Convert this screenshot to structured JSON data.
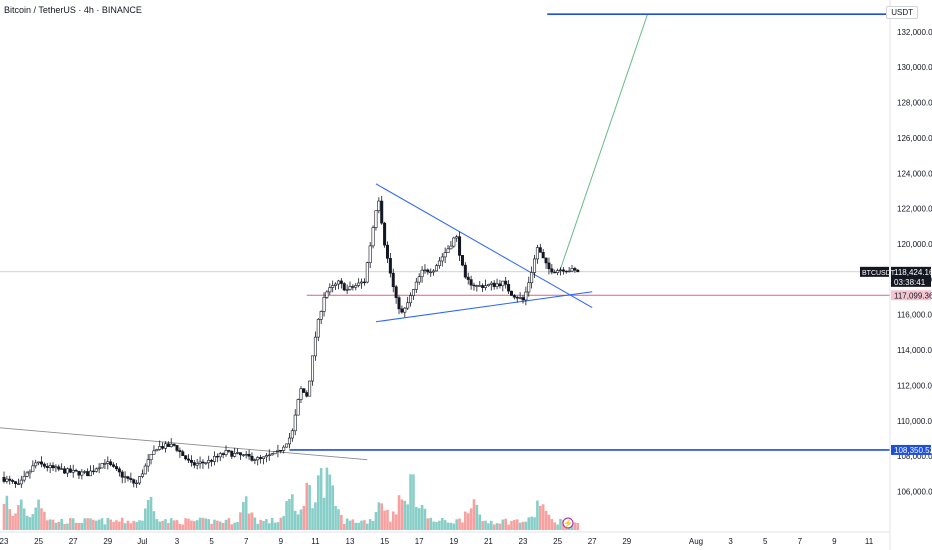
{
  "header": {
    "title": "Bitcoin / TetherUS · 4h · BINANCE",
    "currency": "USDT"
  },
  "colors": {
    "up": "#26a69a",
    "down": "#ef5350",
    "candle": "#131722",
    "trendline": "#2962ff",
    "projection": "#66bb8a",
    "support": "#e06080",
    "level": "#1e4fd8",
    "oldtrend": "#8a8a8a",
    "lastprice": "#131722"
  },
  "chart_data": {
    "type": "candlestick",
    "symbol": "BTCUSDT",
    "ylim": [
      104500,
      133800
    ],
    "y_ticks": [
      106000,
      108000,
      110000,
      112000,
      114000,
      116000,
      118000,
      120000,
      122000,
      124000,
      126000,
      128000,
      130000,
      132000
    ],
    "y_tick_labels": [
      "106,000.00",
      "108,000.00",
      "110,000.00",
      "112,000.00",
      "114,000.00",
      "116,000.00",
      "118,000.00",
      "120,000.00",
      "122,000.00",
      "124,000.00",
      "126,000.00",
      "128,000.00",
      "130,000.00",
      "132,000.00"
    ],
    "x_tick_labels": [
      "23",
      "25",
      "27",
      "29",
      "Jul",
      "3",
      "5",
      "7",
      "9",
      "11",
      "13",
      "15",
      "17",
      "19",
      "21",
      "23",
      "25",
      "27",
      "29",
      "Aug",
      "3",
      "5",
      "7",
      "9",
      "11"
    ],
    "x_tick_days": [
      0,
      2,
      4,
      6,
      8,
      10,
      12,
      14,
      16,
      18,
      20,
      22,
      24,
      26,
      28,
      30,
      32,
      34,
      36,
      40,
      42,
      44,
      46,
      48,
      50
    ],
    "price_path": [
      [
        0,
        106800
      ],
      [
        1,
        106300
      ],
      [
        2,
        107600
      ],
      [
        3,
        107300
      ],
      [
        4,
        107100
      ],
      [
        5,
        107000
      ],
      [
        6,
        107700
      ],
      [
        7,
        106900
      ],
      [
        7.8,
        106400
      ],
      [
        8.5,
        107700
      ],
      [
        9,
        108500
      ],
      [
        10,
        108600
      ],
      [
        11,
        107500
      ],
      [
        12,
        107700
      ],
      [
        13,
        108200
      ],
      [
        14,
        108000
      ],
      [
        15,
        107800
      ],
      [
        16,
        108200
      ],
      [
        16.8,
        109200
      ],
      [
        17.3,
        111800
      ],
      [
        17.7,
        111400
      ],
      [
        18.2,
        115000
      ],
      [
        18.7,
        117200
      ],
      [
        19.5,
        117800
      ],
      [
        20,
        117400
      ],
      [
        21,
        117900
      ],
      [
        21.8,
        122800
      ],
      [
        22.2,
        119800
      ],
      [
        22.8,
        116900
      ],
      [
        23.2,
        116000
      ],
      [
        23.8,
        117300
      ],
      [
        24.3,
        118400
      ],
      [
        25,
        118600
      ],
      [
        25.8,
        119700
      ],
      [
        26.3,
        120500
      ],
      [
        26.8,
        118000
      ],
      [
        27.5,
        117600
      ],
      [
        28.5,
        117700
      ],
      [
        29,
        117800
      ],
      [
        29.5,
        117200
      ],
      [
        30.2,
        116800
      ],
      [
        30.6,
        118200
      ],
      [
        31,
        119800
      ],
      [
        31.6,
        118600
      ],
      [
        32,
        118500
      ],
      [
        32.5,
        118600
      ],
      [
        33,
        118500
      ],
      [
        33.3,
        118424
      ]
    ],
    "volume_peaks": [
      [
        0,
        2.5
      ],
      [
        1,
        2.0
      ],
      [
        2,
        2.6
      ],
      [
        8.5,
        2.2
      ],
      [
        14,
        1.9
      ],
      [
        16.5,
        2.2
      ],
      [
        17.5,
        3.4
      ],
      [
        18.2,
        5.0
      ],
      [
        18.7,
        4.0
      ],
      [
        19,
        2.4
      ],
      [
        21.8,
        2.3
      ],
      [
        22.8,
        1.8
      ],
      [
        23,
        2.1
      ],
      [
        23.5,
        4.0
      ],
      [
        24,
        2.6
      ],
      [
        27,
        2.3
      ],
      [
        31,
        2.0
      ]
    ],
    "last_price": "118,424.16",
    "countdown": "03:38:41",
    "support_level": "117,099.36",
    "horizontal_level": "108,350.52",
    "annotations": [
      "triangle upper trendline",
      "triangle lower trendline",
      "projection to 133,000",
      "target line",
      "support line 117,099.36",
      "level line 108,350.52",
      "old descending trendline"
    ]
  }
}
